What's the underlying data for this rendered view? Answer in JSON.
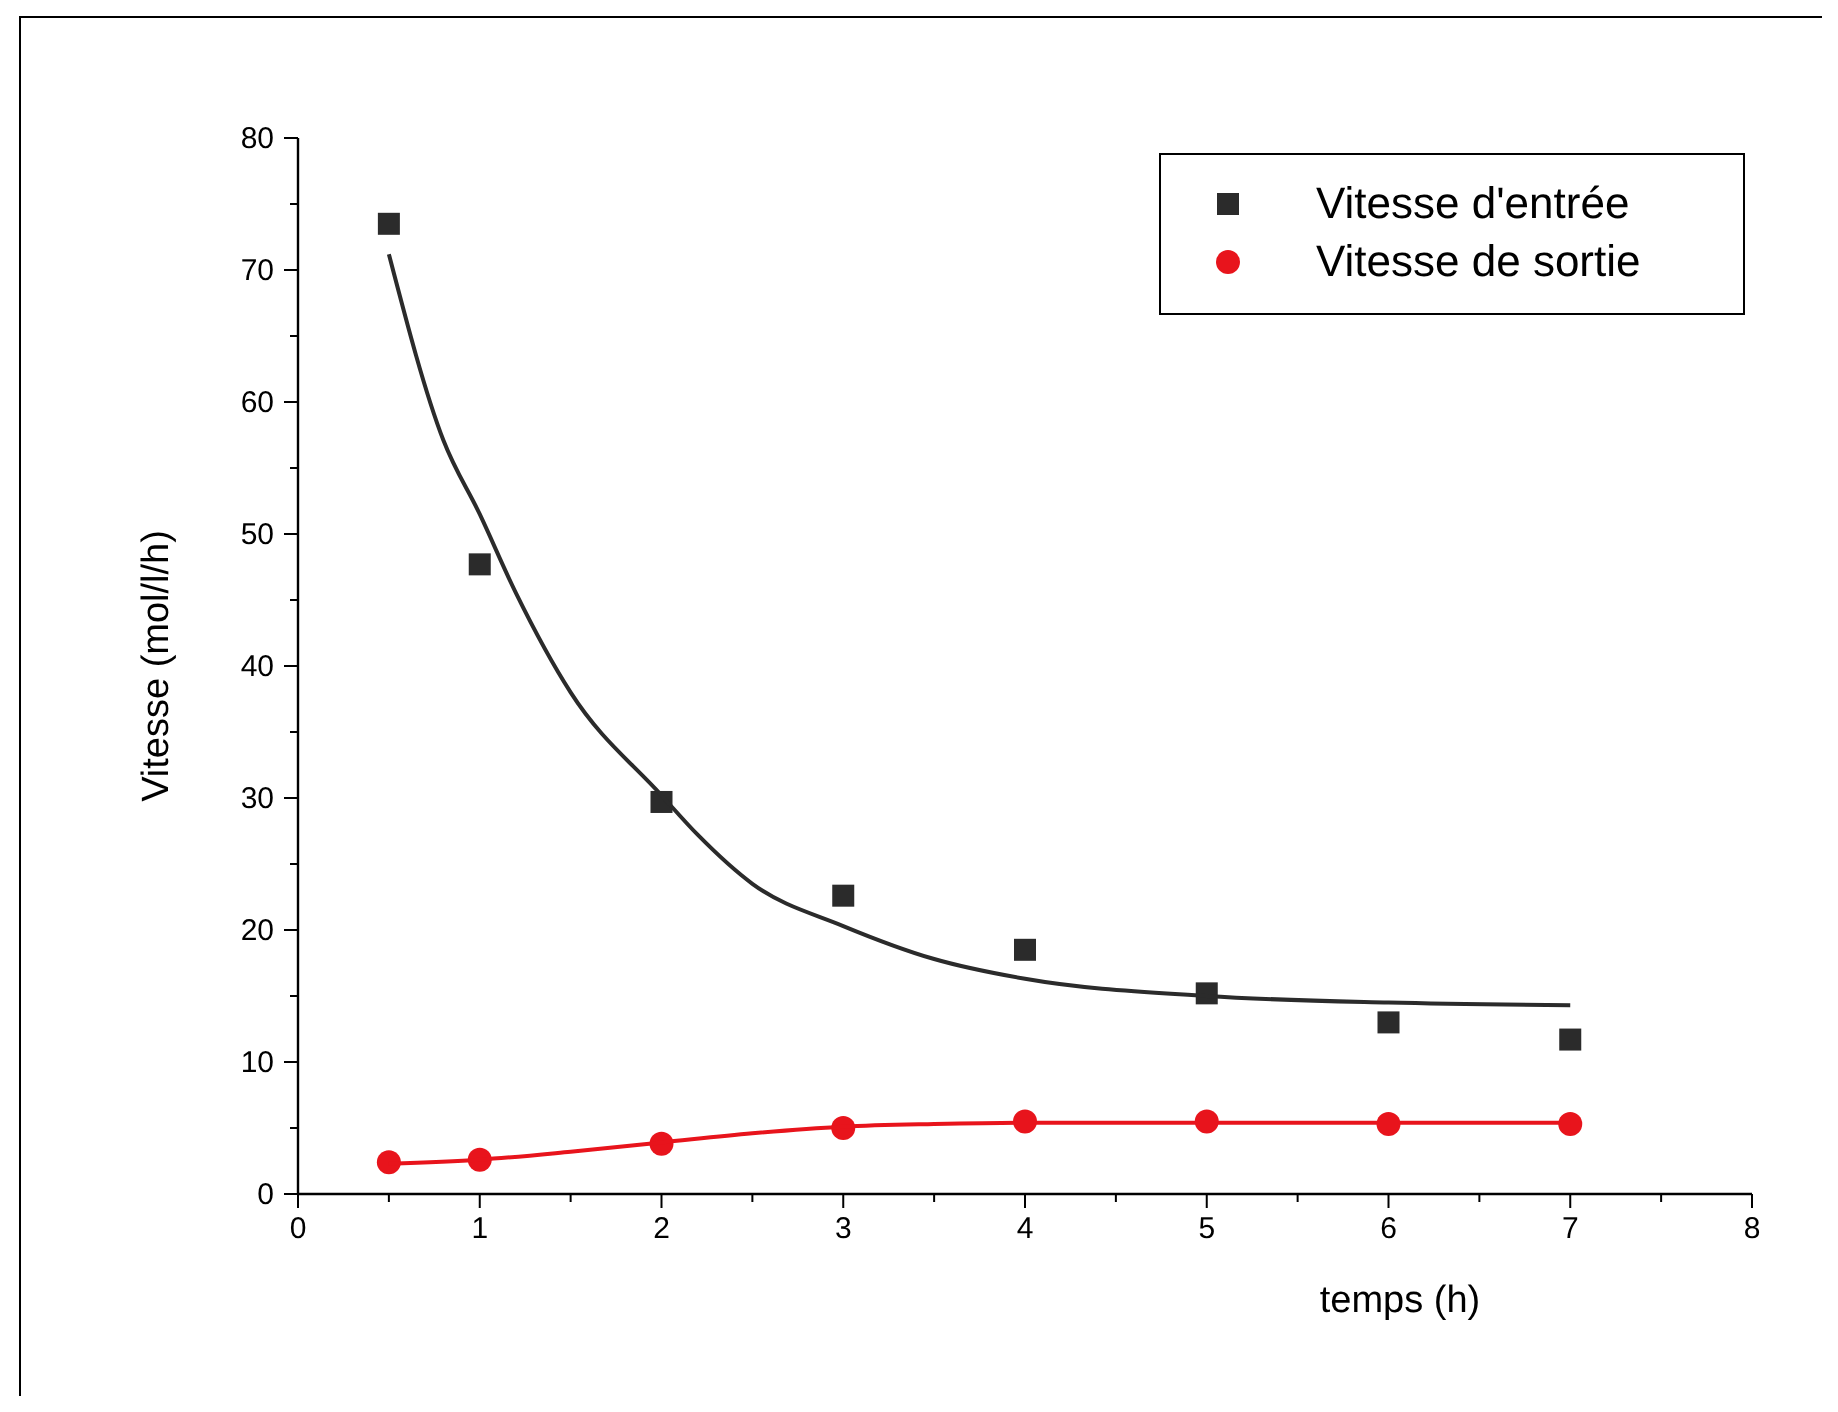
{
  "chart_data": {
    "type": "scatter",
    "xlabel": "temps (h)",
    "ylabel": "Vitesse (mol/l/h)",
    "xlim": [
      0,
      8
    ],
    "ylim": [
      0,
      80
    ],
    "xticks": [
      0,
      1,
      2,
      3,
      4,
      5,
      6,
      7,
      8
    ],
    "yticks": [
      0,
      10,
      20,
      30,
      40,
      50,
      60,
      70,
      80
    ],
    "grid": false,
    "legend": "top right",
    "series": [
      {
        "name": "Vitesse d'entrée",
        "marker": "square",
        "color": "#2b2b2b",
        "x": [
          0.5,
          1,
          2,
          3,
          4,
          5,
          6,
          7
        ],
        "values": [
          73.5,
          47.7,
          29.7,
          22.6,
          18.5,
          15.2,
          13.0,
          11.7
        ]
      },
      {
        "name": "Vitesse de sortie",
        "marker": "circle",
        "color": "#e8141c",
        "x": [
          0.5,
          1,
          2,
          3,
          4,
          5,
          6,
          7
        ],
        "values": [
          2.4,
          2.6,
          3.8,
          5.0,
          5.5,
          5.5,
          5.3,
          5.3
        ]
      },
      {
        "type": "line",
        "marker": "none",
        "line_style": "solid",
        "color": "#2b2b2b",
        "x": [
          0.5,
          0.8,
          1,
          1.2,
          1.5,
          2,
          2.2,
          2.5,
          3,
          3.5,
          4,
          5,
          6,
          7
        ],
        "values": [
          71.2,
          57.1,
          51.5,
          45.5,
          38,
          30.2,
          27.2,
          23.5,
          20.3,
          17.8,
          16.3,
          15,
          14.5,
          14.3
        ]
      },
      {
        "type": "line",
        "marker": "none",
        "line_style": "solid",
        "color": "#e8141c",
        "x": [
          0.5,
          1,
          1.5,
          2,
          2.5,
          3,
          3.5,
          4,
          5,
          6,
          7
        ],
        "values": [
          2.3,
          2.6,
          3.2,
          3.9,
          4.6,
          5.1,
          5.3,
          5.4,
          5.4,
          5.4,
          5.4
        ]
      }
    ]
  }
}
